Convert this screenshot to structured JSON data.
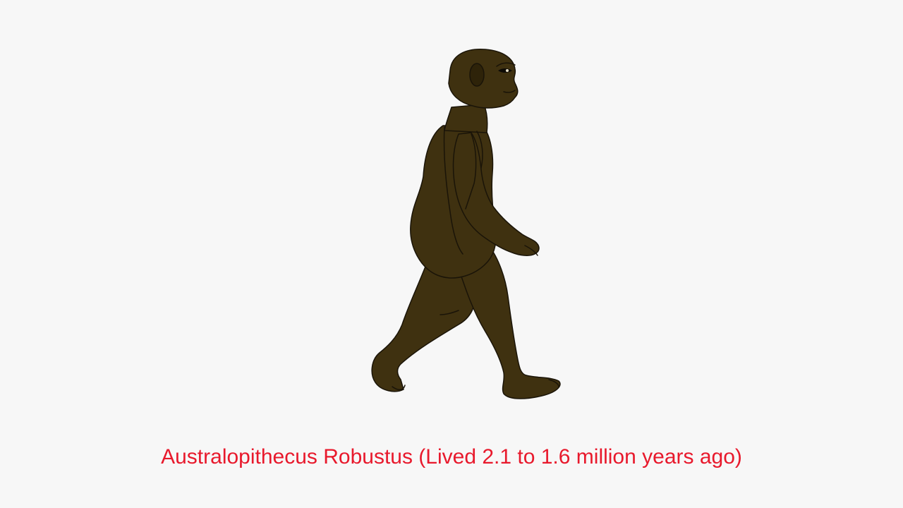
{
  "scene": {
    "caption": "Australopithecus Robustus (Lived 2.1 to 1.6 million years ago)",
    "caption_color": "#e8192c",
    "background_color": "#f7f7f7",
    "figure_color": "#3f3110",
    "figure_outline_color": "#1a1408",
    "figure_shade_color": "#2e2309",
    "figure_description_icon": "walking-hominid-illustration"
  }
}
